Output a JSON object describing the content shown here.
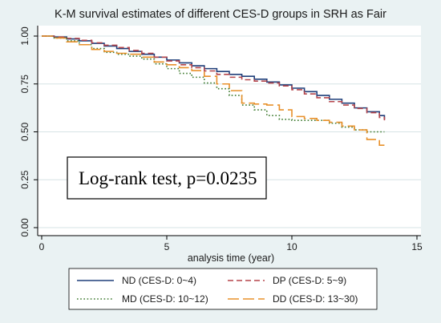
{
  "chart_data": {
    "type": "line",
    "title": "K-M survival estimates of different CES-D groups in SRH as Fair",
    "xlabel": "analysis time (year)",
    "ylabel": "",
    "xlim": [
      0,
      15
    ],
    "ylim": [
      0,
      1
    ],
    "xticks": [
      "0",
      "5",
      "10",
      "15"
    ],
    "yticks": [
      "0.00",
      "0.25",
      "0.50",
      "0.75",
      "1.00"
    ],
    "grid": "horizontal",
    "legend_placement": "bottom",
    "annotation": "Log-rank test, p=0.0235",
    "series": [
      {
        "name": "ND (CES-D: 0~4)",
        "color": "#1f3f7a",
        "dash": "solid",
        "x": [
          0,
          0.5,
          1,
          1.5,
          2,
          2.5,
          3,
          3.5,
          4,
          4.5,
          5,
          5.5,
          6,
          6.5,
          7,
          7.5,
          8,
          8.5,
          9,
          9.5,
          10,
          10.5,
          11,
          11.5,
          12,
          12.5,
          13,
          13.5,
          13.7
        ],
        "y": [
          1.0,
          0.995,
          0.985,
          0.975,
          0.962,
          0.948,
          0.935,
          0.92,
          0.905,
          0.89,
          0.875,
          0.86,
          0.845,
          0.83,
          0.815,
          0.8,
          0.79,
          0.775,
          0.76,
          0.745,
          0.728,
          0.71,
          0.69,
          0.67,
          0.65,
          0.625,
          0.605,
          0.585,
          0.565
        ]
      },
      {
        "name": "DP (CES-D: 5~9)",
        "color": "#b5454b",
        "dash": "dash",
        "x": [
          0,
          0.5,
          1,
          1.5,
          2,
          2.5,
          3,
          3.5,
          4,
          4.5,
          5,
          5.5,
          6,
          6.5,
          7,
          7.5,
          8,
          8.5,
          9,
          9.5,
          10,
          10.5,
          11,
          11.5,
          12,
          12.5,
          13,
          13.5,
          13.7
        ],
        "y": [
          1.0,
          0.995,
          0.988,
          0.978,
          0.965,
          0.952,
          0.94,
          0.925,
          0.91,
          0.89,
          0.87,
          0.85,
          0.835,
          0.818,
          0.8,
          0.785,
          0.772,
          0.765,
          0.755,
          0.74,
          0.72,
          0.698,
          0.678,
          0.658,
          0.64,
          0.622,
          0.6,
          0.575,
          0.56
        ]
      },
      {
        "name": "MD (CES-D: 10~12)",
        "color": "#3d7a2e",
        "dash": "dot",
        "x": [
          0,
          0.5,
          1,
          1.5,
          2,
          2.5,
          3,
          3.5,
          4,
          4.5,
          5,
          5.5,
          6,
          6.5,
          7,
          7.5,
          8,
          8.5,
          9,
          9.5,
          10,
          10.5,
          11,
          11.5,
          12,
          12.5,
          13,
          13.5,
          13.7
        ],
        "y": [
          1.0,
          0.99,
          0.975,
          0.955,
          0.935,
          0.915,
          0.905,
          0.895,
          0.88,
          0.855,
          0.83,
          0.805,
          0.785,
          0.755,
          0.725,
          0.69,
          0.64,
          0.615,
          0.585,
          0.565,
          0.56,
          0.56,
          0.56,
          0.545,
          0.525,
          0.51,
          0.5,
          0.5,
          0.5
        ]
      },
      {
        "name": "DD (CES-D: 13~30)",
        "color": "#e8902a",
        "dash": "longdash",
        "x": [
          0,
          0.5,
          1,
          1.5,
          2,
          2.5,
          3,
          3.5,
          4,
          4.5,
          5,
          5.5,
          6,
          6.5,
          7,
          7.5,
          8,
          8.5,
          9,
          9.5,
          10,
          10.5,
          11,
          11.5,
          12,
          12.5,
          13,
          13.5,
          13.7
        ],
        "y": [
          1.0,
          0.99,
          0.97,
          0.955,
          0.93,
          0.92,
          0.91,
          0.905,
          0.89,
          0.865,
          0.85,
          0.835,
          0.82,
          0.79,
          0.75,
          0.715,
          0.65,
          0.645,
          0.64,
          0.615,
          0.58,
          0.57,
          0.56,
          0.55,
          0.53,
          0.51,
          0.46,
          0.43,
          0.43
        ]
      }
    ]
  }
}
